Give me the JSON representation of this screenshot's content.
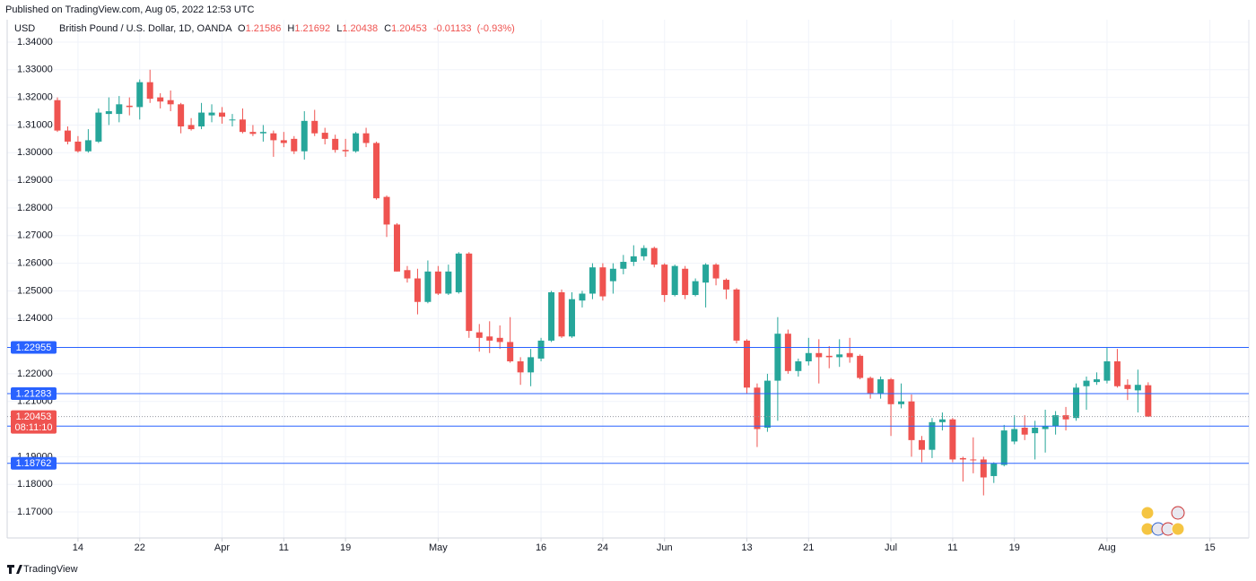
{
  "chart_data": {
    "type": "candlestick",
    "published": "Published on TradingView.com, Aug 05, 2022 12:53 UTC",
    "currency": "USD",
    "title": "British Pound / U.S. Dollar, 1D, OANDA",
    "ohlc_labels": [
      "O",
      "H",
      "L",
      "C"
    ],
    "change": -0.01133,
    "change_pct": {
      "value": -0.93,
      "label": "(-0.93%)"
    },
    "countdown": "08:11:10",
    "footer_brand": "TradingView",
    "up_color": "#26a69a",
    "down_color": "#ef5350",
    "price_line_color": "#2962ff",
    "open": [
      1.319,
      1.308,
      1.304,
      1.3005,
      1.304,
      1.314,
      1.314,
      1.317,
      1.3165,
      1.3255,
      1.32,
      1.319,
      1.3175,
      1.31,
      1.3095,
      1.3135,
      1.3145,
      1.3118,
      1.312,
      1.3075,
      1.307,
      1.307,
      1.3045,
      1.305,
      1.3005,
      1.3115,
      1.3072,
      1.305,
      1.301,
      1.3005,
      1.307,
      1.3035,
      1.284,
      1.274,
      1.2575,
      1.2545,
      1.246,
      1.257,
      1.249,
      1.2495,
      1.2635,
      1.235,
      1.2335,
      1.233,
      1.2315,
      1.2245,
      1.2205,
      1.2255,
      1.232,
      1.2495,
      1.2335,
      1.2465,
      1.249,
      1.2585,
      1.2535,
      1.258,
      1.2605,
      1.2625,
      1.2655,
      1.2595,
      1.2485,
      1.258,
      1.2485,
      1.253,
      1.2595,
      1.254,
      1.2505,
      1.232,
      1.215,
      1.2005,
      1.2175,
      1.2345,
      1.221,
      1.2245,
      1.2275,
      1.2265,
      1.226,
      1.2275,
      1.2265,
      1.2185,
      1.213,
      1.218,
      1.209,
      1.21,
      1.196,
      1.1925,
      1.2025,
      1.2035,
      1.1895,
      1.189,
      1.189,
      1.183,
      1.187,
      1.1955,
      1.2005,
      1.1985,
      1.2,
      1.201,
      1.205,
      1.204,
      1.2155,
      1.217,
      1.2175,
      1.2245,
      1.216,
      1.214,
      1.21586
    ],
    "high": [
      1.32,
      1.3095,
      1.306,
      1.3085,
      1.316,
      1.32,
      1.3205,
      1.32,
      1.3265,
      1.33,
      1.3215,
      1.3225,
      1.318,
      1.3125,
      1.318,
      1.3175,
      1.3165,
      1.314,
      1.316,
      1.31,
      1.31,
      1.308,
      1.3075,
      1.306,
      1.315,
      1.3155,
      1.309,
      1.3065,
      1.305,
      1.3075,
      1.309,
      1.304,
      1.2845,
      1.2745,
      1.259,
      1.258,
      1.261,
      1.259,
      1.2595,
      1.264,
      1.264,
      1.238,
      1.239,
      1.2375,
      1.2405,
      1.226,
      1.229,
      1.233,
      1.25,
      1.2505,
      1.2495,
      1.25,
      1.26,
      1.26,
      1.26,
      1.263,
      1.2665,
      1.2665,
      1.266,
      1.26,
      1.2595,
      1.259,
      1.2545,
      1.26,
      1.26,
      1.2545,
      1.251,
      1.2325,
      1.2165,
      1.22,
      1.2405,
      1.236,
      1.2255,
      1.233,
      1.2325,
      1.23,
      1.2325,
      1.233,
      1.227,
      1.219,
      1.219,
      1.2185,
      1.2165,
      1.2125,
      1.1975,
      1.204,
      1.206,
      1.204,
      1.19,
      1.197,
      1.19,
      1.188,
      1.2015,
      1.205,
      1.205,
      1.203,
      1.207,
      1.2065,
      1.208,
      1.2165,
      1.219,
      1.2205,
      1.2295,
      1.229,
      1.218,
      1.2215,
      1.21692
    ],
    "low": [
      1.3075,
      1.303,
      1.3,
      1.3,
      1.3035,
      1.31,
      1.311,
      1.3135,
      1.312,
      1.318,
      1.316,
      1.315,
      1.307,
      1.308,
      1.3085,
      1.311,
      1.3105,
      1.3095,
      1.307,
      1.306,
      1.304,
      1.2985,
      1.302,
      1.2995,
      1.2975,
      1.306,
      1.303,
      1.3,
      1.2985,
      1.3,
      1.302,
      1.283,
      1.2695,
      1.257,
      1.253,
      1.2415,
      1.2455,
      1.2485,
      1.2485,
      1.249,
      1.233,
      1.228,
      1.2275,
      1.229,
      1.224,
      1.216,
      1.2155,
      1.2245,
      1.2315,
      1.233,
      1.233,
      1.244,
      1.247,
      1.2465,
      1.249,
      1.256,
      1.259,
      1.261,
      1.2585,
      1.246,
      1.248,
      1.247,
      1.248,
      1.244,
      1.252,
      1.247,
      1.231,
      1.213,
      1.1935,
      1.199,
      1.203,
      1.22,
      1.219,
      1.223,
      1.2165,
      1.222,
      1.2225,
      1.224,
      1.218,
      1.211,
      1.211,
      1.1975,
      1.2075,
      1.19,
      1.188,
      1.1895,
      1.1995,
      1.188,
      1.181,
      1.184,
      1.176,
      1.1805,
      1.1865,
      1.1945,
      1.196,
      1.189,
      1.1915,
      1.198,
      1.1995,
      1.203,
      1.207,
      1.216,
      1.2165,
      1.215,
      1.2105,
      1.206,
      1.20438
    ],
    "close": [
      1.308,
      1.304,
      1.3005,
      1.3045,
      1.3145,
      1.315,
      1.3175,
      1.3165,
      1.3255,
      1.3195,
      1.3185,
      1.3175,
      1.3095,
      1.3085,
      1.3145,
      1.3145,
      1.313,
      1.312,
      1.3075,
      1.3068,
      1.3075,
      1.3045,
      1.3035,
      1.3005,
      1.3115,
      1.307,
      1.305,
      1.301,
      1.3005,
      1.307,
      1.3035,
      1.2835,
      1.274,
      1.257,
      1.2545,
      1.246,
      1.257,
      1.249,
      1.257,
      1.2635,
      1.2355,
      1.233,
      1.232,
      1.2315,
      1.2245,
      1.2205,
      1.226,
      1.232,
      1.2495,
      1.2335,
      1.247,
      1.249,
      1.2585,
      1.248,
      1.258,
      1.2605,
      1.2625,
      1.2655,
      1.2595,
      1.2485,
      1.259,
      1.2485,
      1.2535,
      1.2595,
      1.2545,
      1.2505,
      1.232,
      1.215,
      1.2,
      1.2175,
      1.2345,
      1.221,
      1.2245,
      1.2275,
      1.226,
      1.226,
      1.227,
      1.226,
      1.2185,
      1.213,
      1.218,
      1.209,
      1.21,
      1.196,
      1.1925,
      1.2025,
      1.2035,
      1.189,
      1.189,
      1.1888,
      1.1825,
      1.1875,
      1.1995,
      1.2,
      1.198,
      1.2005,
      1.201,
      1.205,
      1.2035,
      1.215,
      1.2175,
      1.218,
      1.2245,
      1.2155,
      1.2145,
      1.216,
      1.20453
    ],
    "xlim": [
      -4.88,
      115.78
    ],
    "xticks": [
      {
        "value": 2,
        "label": "14"
      },
      {
        "value": 8,
        "label": "22"
      },
      {
        "value": 16,
        "label": "Apr"
      },
      {
        "value": 22,
        "label": "11"
      },
      {
        "value": 28,
        "label": "19"
      },
      {
        "value": 37,
        "label": "May"
      },
      {
        "value": 47,
        "label": "16"
      },
      {
        "value": 53,
        "label": "24"
      },
      {
        "value": 59,
        "label": "Jun"
      },
      {
        "value": 67,
        "label": "13"
      },
      {
        "value": 73,
        "label": "21"
      },
      {
        "value": 81,
        "label": "Jul"
      },
      {
        "value": 87,
        "label": "11"
      },
      {
        "value": 93,
        "label": "19"
      },
      {
        "value": 102,
        "label": "Aug"
      },
      {
        "value": 112,
        "label": "15"
      }
    ],
    "ylim": [
      1.1606,
      1.3481
    ],
    "yticks": [
      {
        "value": 1.34,
        "label": "1.34000"
      },
      {
        "value": 1.33,
        "label": "1.33000"
      },
      {
        "value": 1.32,
        "label": "1.32000"
      },
      {
        "value": 1.31,
        "label": "1.31000"
      },
      {
        "value": 1.3,
        "label": "1.30000"
      },
      {
        "value": 1.29,
        "label": "1.29000"
      },
      {
        "value": 1.28,
        "label": "1.28000"
      },
      {
        "value": 1.27,
        "label": "1.27000"
      },
      {
        "value": 1.26,
        "label": "1.26000"
      },
      {
        "value": 1.25,
        "label": "1.25000"
      },
      {
        "value": 1.24,
        "label": "1.24000"
      },
      {
        "value": 1.22,
        "label": "1.22000"
      },
      {
        "value": 1.21,
        "label": "1.21000"
      },
      {
        "value": 1.19,
        "label": "1.19000"
      },
      {
        "value": 1.18,
        "label": "1.18000"
      },
      {
        "value": 1.17,
        "label": "1.17000"
      }
    ],
    "grid": true,
    "price_lines": [
      1.22955,
      1.21283,
      1.20108,
      1.18762
    ]
  }
}
